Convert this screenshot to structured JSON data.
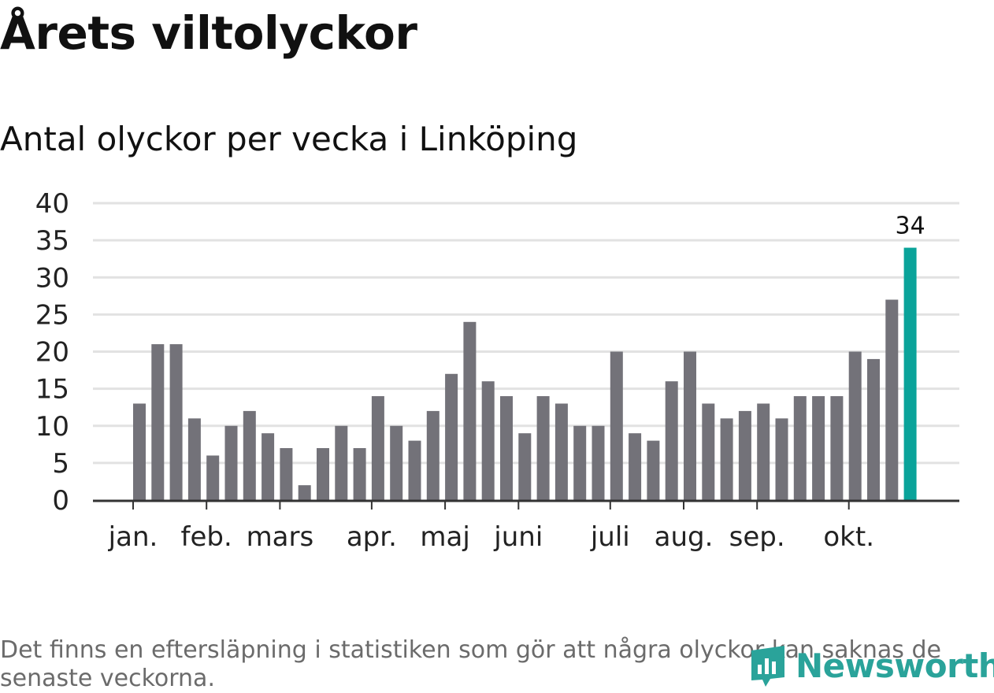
{
  "title": "Årets viltolyckor",
  "subtitle": "Antal olyckor per vecka i Linköping",
  "footnote": "Det finns en eftersläpning i statistiken som gör att några olyckor kan saknas de senaste veckorna.",
  "logo": {
    "text": "Newsworthy",
    "icon": "newsworthy-logo-icon",
    "color": "#2aa39a"
  },
  "colors": {
    "bar": "#737279",
    "highlight": "#0aa39a",
    "grid": "#e2e2e2",
    "axis": "#333333",
    "text": "#222222"
  },
  "chart_data": {
    "type": "bar",
    "title": "Antal olyckor per vecka i Linköping",
    "ylim": [
      0,
      40
    ],
    "yticks": [
      0,
      5,
      10,
      15,
      20,
      25,
      30,
      35,
      40
    ],
    "grid": true,
    "values": [
      13,
      21,
      21,
      11,
      6,
      10,
      12,
      9,
      7,
      2,
      7,
      10,
      7,
      14,
      10,
      8,
      12,
      17,
      24,
      16,
      14,
      9,
      14,
      13,
      10,
      10,
      20,
      9,
      8,
      16,
      20,
      13,
      11,
      12,
      13,
      11,
      14,
      14,
      14,
      20,
      19,
      27,
      34
    ],
    "highlight_index": 42,
    "highlight_label": "34",
    "month_labels": [
      {
        "label": "jan.",
        "bar": 0
      },
      {
        "label": "feb.",
        "bar": 4
      },
      {
        "label": "mars",
        "bar": 8
      },
      {
        "label": "apr.",
        "bar": 13
      },
      {
        "label": "maj",
        "bar": 17
      },
      {
        "label": "juni",
        "bar": 21
      },
      {
        "label": "juli",
        "bar": 26
      },
      {
        "label": "aug.",
        "bar": 30
      },
      {
        "label": "sep.",
        "bar": 34
      },
      {
        "label": "okt.",
        "bar": 39
      }
    ]
  }
}
